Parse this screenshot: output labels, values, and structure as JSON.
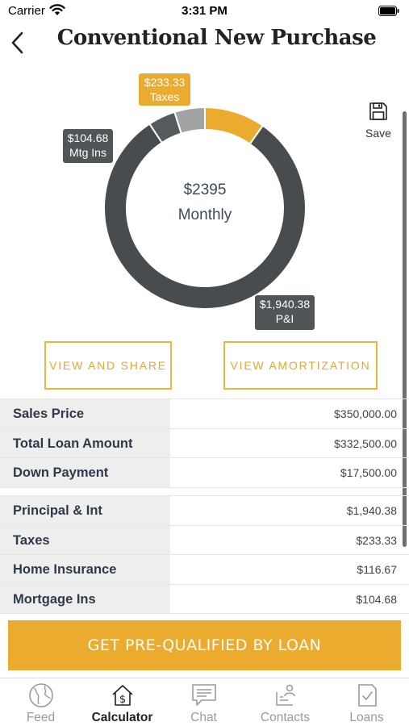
{
  "status_bar": {
    "carrier": "Carrier",
    "time": "3:31 PM"
  },
  "header": {
    "title": "Conventional New Purchase"
  },
  "save": {
    "label": "Save"
  },
  "summary": {
    "amount": "$2395",
    "period": "Monthly"
  },
  "chart_data": {
    "type": "pie",
    "donut": true,
    "slices": [
      {
        "label": "Taxes",
        "display": "$233.33",
        "value": 233.33,
        "color": "#ebab2f"
      },
      {
        "label": "P&I",
        "display": "$1,940.38",
        "value": 1940.38,
        "color": "#494c4f"
      },
      {
        "label": "Mtg Ins",
        "display": "$104.68",
        "value": 104.68,
        "color": "#555a5d"
      },
      {
        "label": "",
        "display": "",
        "value": 116.67,
        "color": "#a3a3a3"
      }
    ]
  },
  "actions": {
    "view_share": "VIEW AND SHARE",
    "view_amortization": "VIEW AMORTIZATION"
  },
  "loan_summary": [
    {
      "label": "Sales Price",
      "value": "$350,000.00"
    },
    {
      "label": "Total Loan Amount",
      "value": "$332,500.00"
    },
    {
      "label": "Down Payment",
      "value": "$17,500.00"
    }
  ],
  "payment_breakdown": [
    {
      "label": "Principal & Int",
      "value": "$1,940.38"
    },
    {
      "label": "Taxes",
      "value": "$233.33"
    },
    {
      "label": "Home Insurance",
      "value": "$116.67"
    },
    {
      "label": "Mortgage Ins",
      "value": "$104.68"
    }
  ],
  "cta": {
    "label": "GET PRE-QUALIFIED BY LOAN"
  },
  "tabs": [
    {
      "label": "Feed",
      "icon": "globe-icon",
      "active": false
    },
    {
      "label": "Calculator",
      "icon": "calculator-house-icon",
      "active": true
    },
    {
      "label": "Chat",
      "icon": "chat-icon",
      "active": false
    },
    {
      "label": "Contacts",
      "icon": "contacts-icon",
      "active": false
    },
    {
      "label": "Loans",
      "icon": "loans-document-icon",
      "active": false
    }
  ]
}
